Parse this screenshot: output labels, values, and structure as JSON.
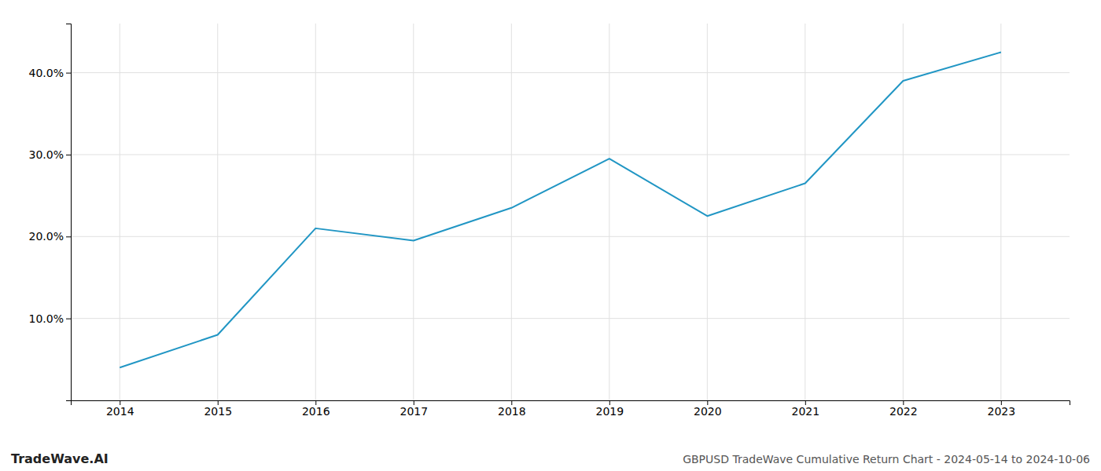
{
  "chart_data": {
    "type": "line",
    "title": "GBPUSD TradeWave Cumulative Return Chart - 2024-05-14 to 2024-10-06",
    "annotations": [
      "TradeWave.AI"
    ],
    "x": [
      2014,
      2015,
      2016,
      2017,
      2018,
      2019,
      2020,
      2021,
      2022,
      2023
    ],
    "values": [
      4.0,
      8.0,
      21.0,
      19.5,
      23.5,
      29.5,
      22.5,
      26.5,
      39.0,
      42.5
    ],
    "color": "#2196c4",
    "xlim": [
      2013.5,
      2023.7
    ],
    "xticks": [
      2014,
      2015,
      2016,
      2017,
      2018,
      2019,
      2020,
      2021,
      2022,
      2023
    ],
    "ylim": [
      0,
      46
    ],
    "yticks": [
      {
        "value": 10.0,
        "label": "10.0%"
      },
      {
        "value": 20.0,
        "label": "20.0%"
      },
      {
        "value": 30.0,
        "label": "30.0%"
      },
      {
        "value": 40.0,
        "label": "40.0%"
      }
    ],
    "grid": true
  }
}
